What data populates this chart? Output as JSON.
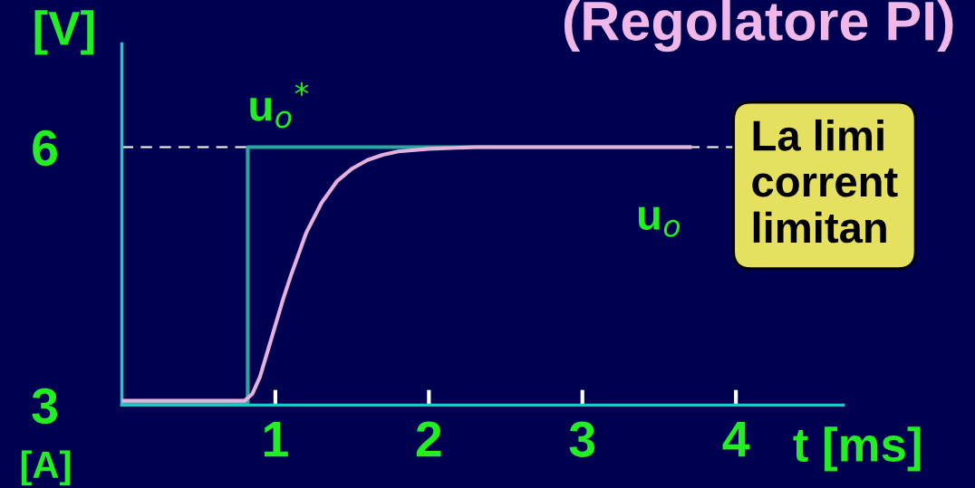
{
  "chart_data": {
    "type": "line",
    "title": "(Regolatore PI)",
    "xlabel": "t [ms]",
    "ylabel": "[V]",
    "xlim": [
      0,
      4.7
    ],
    "ylim": [
      3,
      7.2
    ],
    "xticks": [
      1,
      2,
      3,
      4
    ],
    "yticks": [
      3,
      6
    ],
    "grid": false,
    "series": [
      {
        "name": "u$_{o}$$^{*}$",
        "color": "#2aa5a0",
        "x": [
          0,
          0.82,
          0.82,
          3.7
        ],
        "values": [
          3.03,
          3.03,
          6.0,
          6.0
        ]
      },
      {
        "name": "u$_{o}$",
        "color": "#e6b0dc",
        "x": [
          0,
          0.8,
          0.85,
          0.9,
          0.95,
          1.0,
          1.05,
          1.1,
          1.2,
          1.3,
          1.4,
          1.5,
          1.6,
          1.7,
          1.8,
          2.0,
          2.3,
          2.7,
          3.7
        ],
        "values": [
          3.05,
          3.05,
          3.13,
          3.33,
          3.63,
          3.93,
          4.23,
          4.5,
          5.0,
          5.35,
          5.6,
          5.75,
          5.85,
          5.91,
          5.95,
          5.98,
          6.0,
          6.0,
          6.0
        ]
      }
    ],
    "ref_lines": [
      {
        "axis": "y",
        "value": 6,
        "color": "#ffffff",
        "line_style": "dashed"
      }
    ],
    "annotations": [
      "La limi\ncorrent\nlimitan",
      "[A]"
    ]
  }
}
